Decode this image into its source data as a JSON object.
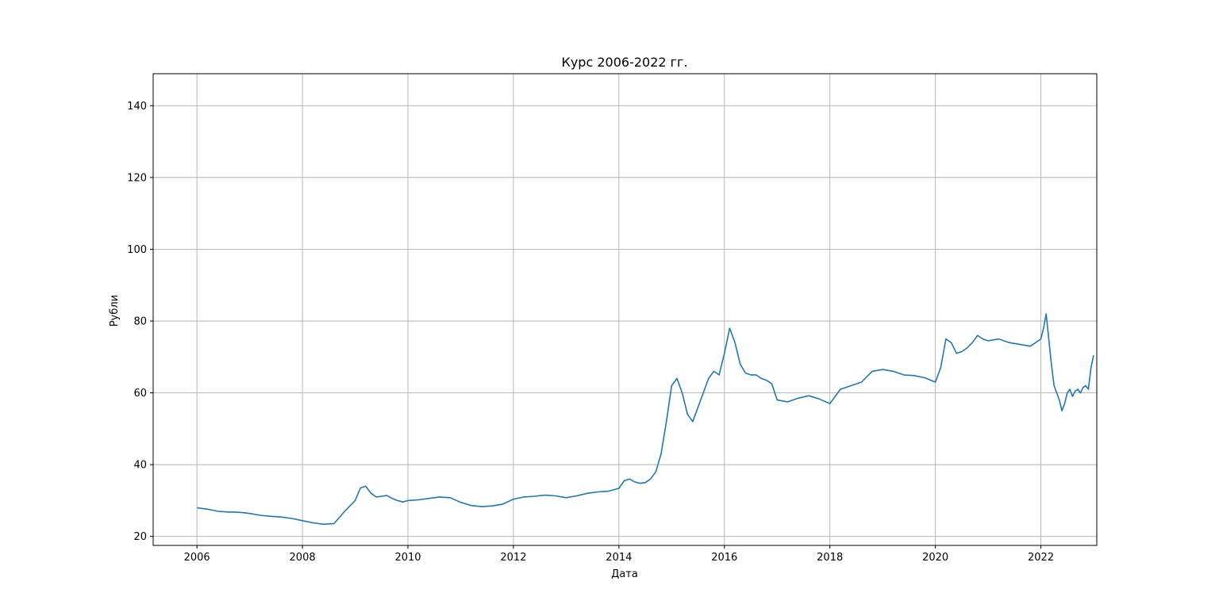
{
  "chart_data": {
    "type": "line",
    "title": "Курс 2006-2022 гг.",
    "xlabel": "Дата",
    "ylabel": "Рубли",
    "xlim": [
      2005.17,
      2023.06
    ],
    "ylim": [
      17.5,
      148.9
    ],
    "x_ticks": [
      2006,
      2008,
      2010,
      2012,
      2014,
      2016,
      2018,
      2020,
      2022
    ],
    "x_tick_labels": [
      "2006",
      "2008",
      "2010",
      "2012",
      "2014",
      "2016",
      "2018",
      "2020",
      "2022"
    ],
    "y_ticks": [
      20,
      40,
      60,
      80,
      100,
      120,
      140
    ],
    "y_tick_labels": [
      "20",
      "40",
      "60",
      "80",
      "100",
      "120",
      "140"
    ],
    "grid": true,
    "series": [
      {
        "color": "#1f77b4",
        "x": [
          2006.0,
          2006.1,
          2006.2,
          2006.3,
          2006.4,
          2006.5,
          2006.6,
          2006.7,
          2006.8,
          2006.9,
          2007.0,
          2007.2,
          2007.4,
          2007.6,
          2007.8,
          2008.0,
          2008.2,
          2008.4,
          2008.6,
          2008.8,
          2009.0,
          2009.1,
          2009.2,
          2009.3,
          2009.4,
          2009.5,
          2009.6,
          2009.7,
          2009.8,
          2009.9,
          2010.0,
          2010.2,
          2010.4,
          2010.6,
          2010.8,
          2011.0,
          2011.2,
          2011.4,
          2011.6,
          2011.8,
          2012.0,
          2012.2,
          2012.4,
          2012.6,
          2012.8,
          2013.0,
          2013.2,
          2013.4,
          2013.6,
          2013.8,
          2014.0,
          2014.1,
          2014.2,
          2014.3,
          2014.4,
          2014.5,
          2014.6,
          2014.7,
          2014.8,
          2014.9,
          2015.0,
          2015.1,
          2015.2,
          2015.3,
          2015.4,
          2015.5,
          2015.6,
          2015.7,
          2015.8,
          2015.9,
          2016.0,
          2016.1,
          2016.2,
          2016.3,
          2016.4,
          2016.5,
          2016.6,
          2016.7,
          2016.8,
          2016.9,
          2017.0,
          2017.2,
          2017.4,
          2017.6,
          2017.8,
          2018.0,
          2018.2,
          2018.4,
          2018.6,
          2018.8,
          2019.0,
          2019.2,
          2019.4,
          2019.6,
          2019.8,
          2020.0,
          2020.1,
          2020.2,
          2020.3,
          2020.4,
          2020.5,
          2020.6,
          2020.7,
          2020.8,
          2020.9,
          2021.0,
          2021.2,
          2021.4,
          2021.6,
          2021.8,
          2022.0,
          2022.05,
          2022.1,
          2022.15,
          2022.2,
          2022.25,
          2022.3,
          2022.35,
          2022.4,
          2022.45,
          2022.5,
          2022.55,
          2022.6,
          2022.65,
          2022.7,
          2022.75,
          2022.8,
          2022.85,
          2022.9,
          2022.95,
          2023.0
        ],
        "y": [
          28.0,
          27.8,
          27.6,
          27.3,
          27.0,
          26.9,
          26.8,
          26.8,
          26.7,
          26.6,
          26.4,
          25.9,
          25.6,
          25.4,
          25.0,
          24.4,
          23.8,
          23.4,
          23.6,
          27.0,
          30.0,
          33.5,
          34.0,
          32.0,
          31.0,
          31.2,
          31.4,
          30.6,
          30.0,
          29.6,
          30.0,
          30.2,
          30.6,
          31.0,
          30.8,
          29.5,
          28.6,
          28.3,
          28.5,
          29.0,
          30.4,
          31.0,
          31.2,
          31.5,
          31.3,
          30.8,
          31.3,
          32.0,
          32.4,
          32.6,
          33.4,
          35.5,
          36.0,
          35.2,
          34.8,
          35.0,
          36.0,
          38.0,
          43.0,
          52.0,
          62.0,
          64.0,
          60.0,
          54.0,
          52.0,
          56.0,
          60.0,
          64.0,
          66.0,
          65.0,
          71.0,
          78.0,
          74.0,
          68.0,
          65.5,
          65.0,
          65.0,
          64.0,
          63.5,
          62.5,
          58.0,
          57.5,
          58.5,
          59.2,
          58.3,
          57.0,
          61.0,
          62.0,
          63.0,
          66.0,
          66.5,
          66.0,
          65.0,
          64.8,
          64.2,
          63.0,
          67.0,
          75.0,
          74.0,
          71.0,
          71.5,
          72.5,
          74.0,
          76.0,
          75.0,
          74.5,
          75.0,
          74.0,
          73.5,
          73.0,
          75.0,
          78.0,
          82.0,
          75.0,
          68.0,
          62.0,
          60.0,
          58.0,
          55.0,
          57.0,
          60.0,
          61.0,
          59.0,
          60.5,
          61.0,
          60.0,
          61.5,
          62.0,
          61.0,
          67.0,
          70.5
        ]
      }
    ]
  }
}
